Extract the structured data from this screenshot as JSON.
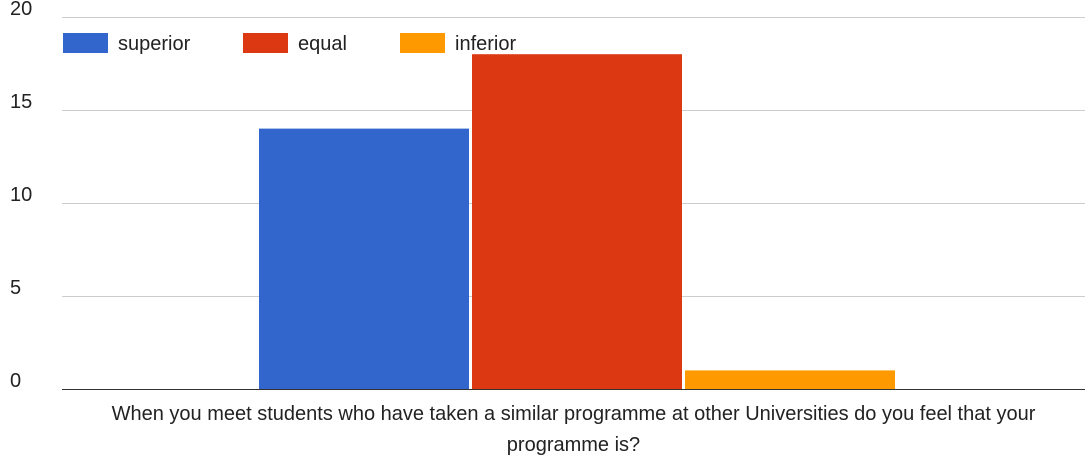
{
  "chart_data": {
    "type": "bar",
    "title": "",
    "xlabel": "When you meet students who have taken a similar programme at other Universities do you feel that your programme is?",
    "ylabel": "",
    "categories": [
      "When you meet students who have taken a similar programme at other Universities do you feel that your programme is?"
    ],
    "series": [
      {
        "name": "superior",
        "values": [
          14
        ],
        "color": "#3366cc"
      },
      {
        "name": "equal",
        "values": [
          18
        ],
        "color": "#dc3912"
      },
      {
        "name": "inferior",
        "values": [
          1
        ],
        "color": "#ff9900"
      }
    ],
    "ylim": [
      0,
      20
    ],
    "yticks": [
      0,
      5,
      10,
      15,
      20
    ],
    "grid": true,
    "legend_position": "top-left"
  }
}
